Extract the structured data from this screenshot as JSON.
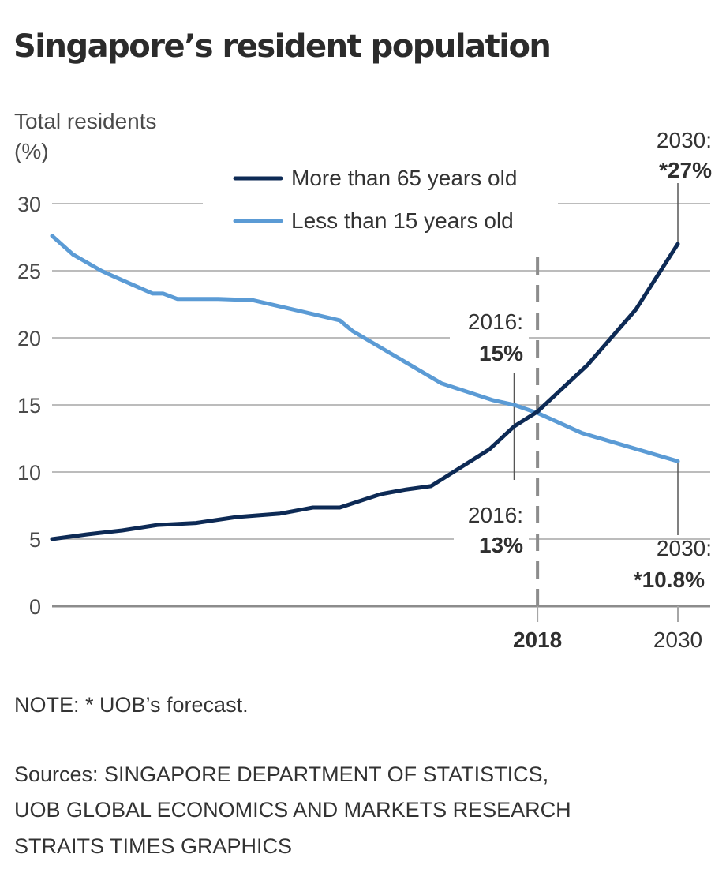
{
  "title": "Singapore’s resident population",
  "footer": {
    "note": "NOTE: * UOB’s forecast.",
    "sources": [
      "Sources: SINGAPORE DEPARTMENT OF STATISTICS,",
      "UOB GLOBAL ECONOMICS AND MARKETS RESEARCH",
      "STRAITS TIMES GRAPHICS"
    ]
  },
  "annotations": {
    "over65_2030_year": "2030:",
    "over65_2030_value": "*27%",
    "under15_2016_year": "2016:",
    "under15_2016_value": "15%",
    "over65_2016_year": "2016:",
    "over65_2016_value": "13%",
    "under15_2030_year": "2030:",
    "under15_2030_value": "*10.8%"
  },
  "chart_data": {
    "type": "line",
    "title": "Singapore’s resident population",
    "ylabel": "Total residents (%)",
    "ylabel_lines": [
      "Total residents",
      "(%)"
    ],
    "xlabel": "",
    "ylim": [
      0,
      30
    ],
    "yticks": [
      0,
      5,
      10,
      15,
      20,
      25,
      30
    ],
    "xlim": [
      1976.5,
      2030
    ],
    "xticks": [
      {
        "value": 2018,
        "label": "2018",
        "bold": true
      },
      {
        "value": 2030,
        "label": "2030",
        "bold": false
      }
    ],
    "reference_line": {
      "x": 2018,
      "style": "dashed"
    },
    "grid": true,
    "legend_position": "top-center",
    "series": [
      {
        "name": "More than 65 years old",
        "color": "#0d2a55",
        "x": [
          1976.5,
          1979.5,
          1982.5,
          1985.5,
          1988.8,
          1992.3,
          1996,
          1998.8,
          2001.1,
          2004.6,
          2006.8,
          2008.9,
          2013.9,
          2016,
          2018,
          2022.3,
          2026.4,
          2030
        ],
        "values": [
          5.0,
          5.35,
          5.65,
          6.05,
          6.2,
          6.65,
          6.9,
          7.35,
          7.35,
          8.35,
          8.7,
          8.95,
          11.7,
          13.4,
          14.5,
          18.0,
          22.1,
          27.0
        ]
      },
      {
        "name": "Less than 15 years old",
        "color": "#5b9bd5",
        "x": [
          1976.5,
          1978.3,
          1980.7,
          1981.7,
          1985.1,
          1986,
          1987.2,
          1990.7,
          1993.7,
          2001.1,
          2002.2,
          2009.8,
          2014.2,
          2016,
          2018,
          2021.8,
          2030
        ],
        "values": [
          27.6,
          26.2,
          25.0,
          24.6,
          23.3,
          23.3,
          22.9,
          22.9,
          22.8,
          21.3,
          20.5,
          16.6,
          15.35,
          15.0,
          14.4,
          12.9,
          10.8
        ]
      }
    ],
    "data_labels": [
      {
        "series": "More than 65 years old",
        "x": 2030,
        "text": "2030: *27%"
      },
      {
        "series": "Less than 15 years old",
        "x": 2016,
        "text": "2016: 15%"
      },
      {
        "series": "More than 65 years old",
        "x": 2016,
        "text": "2016: 13%"
      },
      {
        "series": "Less than 15 years old",
        "x": 2030,
        "text": "2030: *10.8%"
      }
    ]
  }
}
